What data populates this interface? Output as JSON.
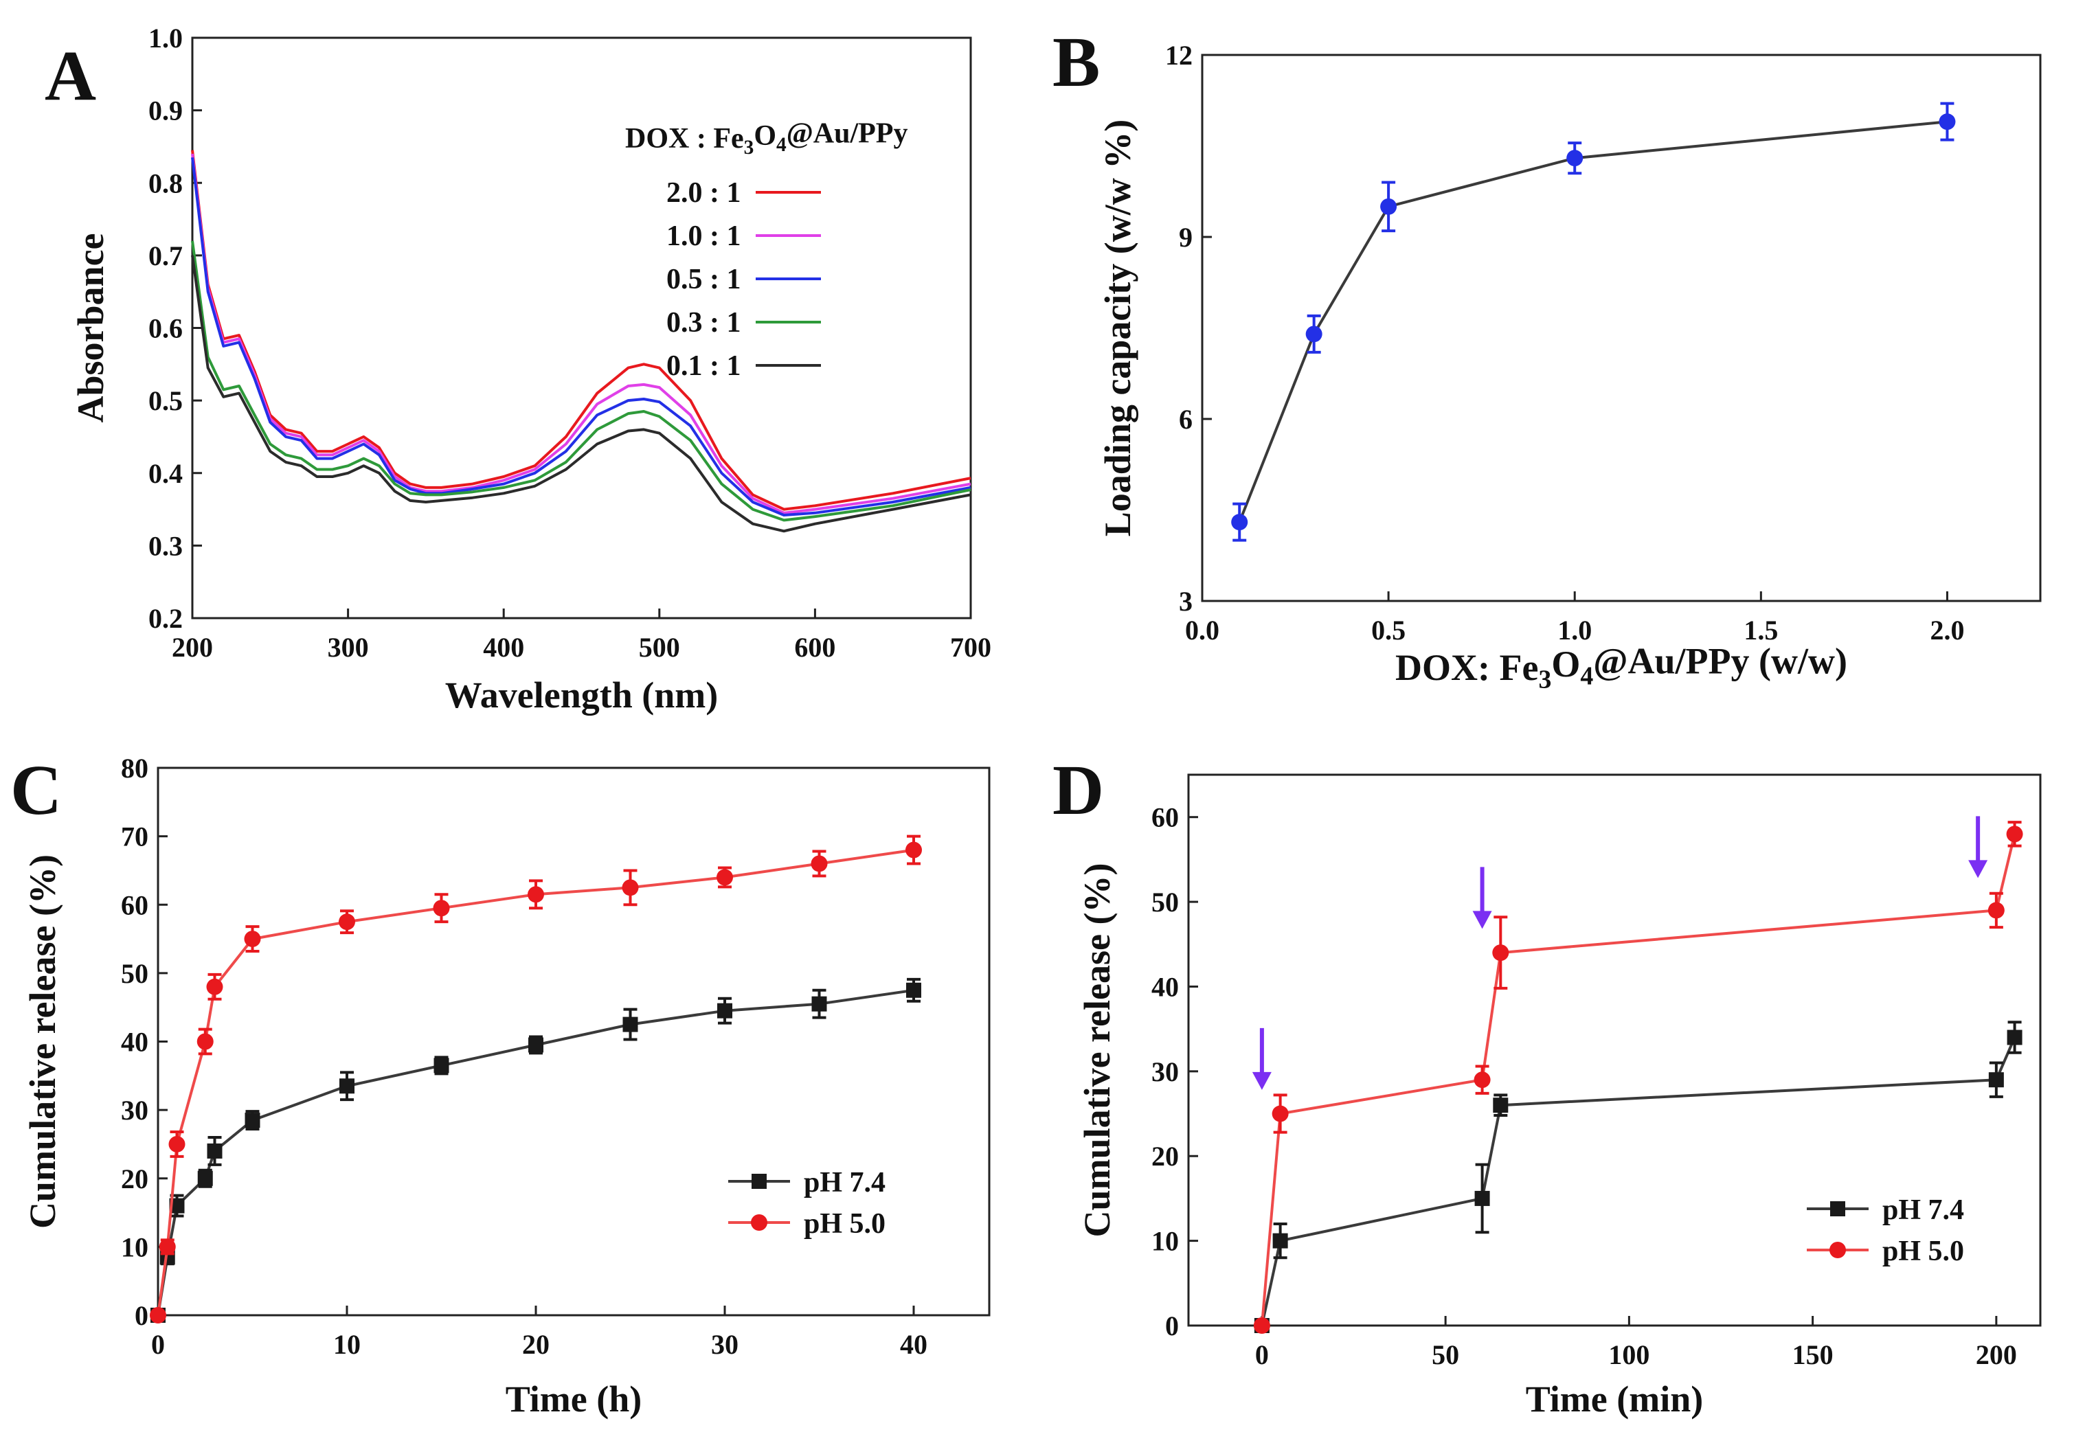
{
  "figure": {
    "panels": [
      "A",
      "B",
      "C",
      "D"
    ]
  },
  "chart_data": [
    {
      "id": "A",
      "letter": "A",
      "type": "line",
      "xlabel": "Wavelength (nm)",
      "ylabel": "Absorbance",
      "xlim": [
        200,
        700
      ],
      "ylim": [
        0.2,
        1.0
      ],
      "xticks": [
        200,
        300,
        400,
        500,
        600,
        700
      ],
      "yticks": [
        0.2,
        0.3,
        0.4,
        0.5,
        0.6,
        0.7,
        0.8,
        0.9,
        1.0
      ],
      "legend_title": "DOX : Fe3O4@Au/PPy",
      "series": [
        {
          "name": "2.0 : 1",
          "color": "#e8191e",
          "x": [
            200,
            210,
            220,
            230,
            240,
            250,
            260,
            270,
            280,
            290,
            300,
            310,
            320,
            330,
            340,
            350,
            360,
            380,
            400,
            420,
            440,
            460,
            480,
            490,
            500,
            520,
            540,
            560,
            580,
            600,
            650,
            700
          ],
          "y": [
            0.845,
            0.66,
            0.585,
            0.59,
            0.54,
            0.48,
            0.46,
            0.455,
            0.43,
            0.43,
            0.44,
            0.45,
            0.435,
            0.4,
            0.385,
            0.38,
            0.38,
            0.385,
            0.395,
            0.41,
            0.45,
            0.51,
            0.545,
            0.55,
            0.545,
            0.5,
            0.42,
            0.37,
            0.35,
            0.355,
            0.372,
            0.393
          ]
        },
        {
          "name": "1.0 : 1",
          "color": "#e040e8",
          "x": [
            200,
            210,
            220,
            230,
            240,
            250,
            260,
            270,
            280,
            290,
            300,
            310,
            320,
            330,
            340,
            350,
            360,
            380,
            400,
            420,
            440,
            460,
            480,
            490,
            500,
            520,
            540,
            560,
            580,
            600,
            650,
            700
          ],
          "y": [
            0.84,
            0.655,
            0.58,
            0.585,
            0.535,
            0.475,
            0.455,
            0.45,
            0.425,
            0.425,
            0.435,
            0.445,
            0.43,
            0.395,
            0.38,
            0.375,
            0.375,
            0.38,
            0.39,
            0.405,
            0.44,
            0.495,
            0.52,
            0.522,
            0.518,
            0.48,
            0.41,
            0.365,
            0.345,
            0.35,
            0.365,
            0.385
          ]
        },
        {
          "name": "0.5 : 1",
          "color": "#2330e6",
          "x": [
            200,
            210,
            220,
            230,
            240,
            250,
            260,
            270,
            280,
            290,
            300,
            310,
            320,
            330,
            340,
            350,
            360,
            380,
            400,
            420,
            440,
            460,
            480,
            490,
            500,
            520,
            540,
            560,
            580,
            600,
            650,
            700
          ],
          "y": [
            0.835,
            0.65,
            0.575,
            0.58,
            0.53,
            0.47,
            0.45,
            0.445,
            0.42,
            0.42,
            0.43,
            0.44,
            0.425,
            0.39,
            0.378,
            0.372,
            0.372,
            0.378,
            0.385,
            0.4,
            0.43,
            0.48,
            0.5,
            0.502,
            0.498,
            0.465,
            0.4,
            0.36,
            0.342,
            0.345,
            0.36,
            0.38
          ]
        },
        {
          "name": "0.3 : 1",
          "color": "#2e9a3a",
          "x": [
            200,
            210,
            220,
            230,
            240,
            250,
            260,
            270,
            280,
            290,
            300,
            310,
            320,
            330,
            340,
            350,
            360,
            380,
            400,
            420,
            440,
            460,
            480,
            490,
            500,
            520,
            540,
            560,
            580,
            600,
            650,
            700
          ],
          "y": [
            0.72,
            0.56,
            0.515,
            0.52,
            0.48,
            0.44,
            0.425,
            0.42,
            0.405,
            0.405,
            0.41,
            0.42,
            0.41,
            0.385,
            0.372,
            0.37,
            0.37,
            0.374,
            0.38,
            0.39,
            0.415,
            0.46,
            0.482,
            0.485,
            0.478,
            0.445,
            0.385,
            0.35,
            0.335,
            0.34,
            0.355,
            0.377
          ]
        },
        {
          "name": "0.1 : 1",
          "color": "#2b2b2b",
          "x": [
            200,
            210,
            220,
            230,
            240,
            250,
            260,
            270,
            280,
            290,
            300,
            310,
            320,
            330,
            340,
            350,
            360,
            380,
            400,
            420,
            440,
            460,
            480,
            490,
            500,
            520,
            540,
            560,
            580,
            600,
            650,
            700
          ],
          "y": [
            0.7,
            0.545,
            0.505,
            0.51,
            0.47,
            0.43,
            0.415,
            0.41,
            0.395,
            0.395,
            0.4,
            0.41,
            0.4,
            0.375,
            0.362,
            0.36,
            0.362,
            0.366,
            0.372,
            0.382,
            0.405,
            0.44,
            0.458,
            0.46,
            0.455,
            0.42,
            0.36,
            0.33,
            0.32,
            0.33,
            0.35,
            0.37
          ]
        }
      ]
    },
    {
      "id": "B",
      "letter": "B",
      "type": "line",
      "xlabel": "DOX: Fe3O4@Au/PPy (w/w)",
      "ylabel": "Loading capacity (w/w %)",
      "xlim": [
        0.0,
        2.25
      ],
      "ylim": [
        3,
        12
      ],
      "xticks": [
        0.0,
        0.5,
        1.0,
        1.5,
        2.0
      ],
      "yticks": [
        3,
        6,
        9,
        12
      ],
      "series": [
        {
          "name": "Loading capacity",
          "color": "#2330e6",
          "line_color": "#3a3a3a",
          "x": [
            0.1,
            0.3,
            0.5,
            1.0,
            2.0
          ],
          "y": [
            4.3,
            7.4,
            9.5,
            10.3,
            10.9
          ],
          "err": [
            0.3,
            0.3,
            0.4,
            0.25,
            0.3
          ]
        }
      ]
    },
    {
      "id": "C",
      "letter": "C",
      "type": "line",
      "xlabel": "Time (h)",
      "ylabel": "Cumulative release (%)",
      "xlim": [
        0,
        44
      ],
      "ylim": [
        0,
        80
      ],
      "xticks": [
        0,
        10,
        20,
        30,
        40
      ],
      "yticks": [
        0,
        10,
        20,
        30,
        40,
        50,
        60,
        70,
        80
      ],
      "series": [
        {
          "name": "pH 7.4",
          "color": "#1a1a1a",
          "line_color": "#3a3a3a",
          "x": [
            0,
            0.5,
            1,
            2.5,
            3,
            5,
            10,
            15,
            20,
            25,
            30,
            35,
            40
          ],
          "y": [
            0,
            8.5,
            16,
            20,
            24,
            28.5,
            33.5,
            36.5,
            39.5,
            42.5,
            44.5,
            45.5,
            47.5
          ],
          "err": [
            0,
            1.0,
            1.5,
            1.2,
            2.0,
            1.3,
            2.0,
            1.2,
            1.2,
            2.2,
            1.8,
            2.0,
            1.6
          ]
        },
        {
          "name": "pH 5.0",
          "color": "#e8191e",
          "line_color": "#ef4a4a",
          "x": [
            0,
            0.5,
            1,
            2.5,
            3,
            5,
            10,
            15,
            20,
            25,
            30,
            35,
            40
          ],
          "y": [
            0,
            10,
            25,
            40,
            48,
            55,
            57.5,
            59.5,
            61.5,
            62.5,
            64,
            66,
            68
          ],
          "err": [
            0,
            1.0,
            1.8,
            1.8,
            1.8,
            1.8,
            1.6,
            2.0,
            2.0,
            2.5,
            1.4,
            1.8,
            2.0
          ]
        }
      ]
    },
    {
      "id": "D",
      "letter": "D",
      "type": "line",
      "xlabel": "Time (min)",
      "ylabel": "Cumulative release (%)",
      "xlim": [
        -20,
        212
      ],
      "ylim": [
        0,
        65
      ],
      "xticks": [
        0,
        50,
        100,
        150,
        200
      ],
      "yticks": [
        0,
        10,
        20,
        30,
        40,
        50,
        60
      ],
      "arrows_at": [
        {
          "x": 0,
          "y": 27
        },
        {
          "x": 60,
          "y": 46
        },
        {
          "x": 195,
          "y": 52
        }
      ],
      "arrow_color": "#7b2ff2",
      "series": [
        {
          "name": "pH 7.4",
          "color": "#1a1a1a",
          "line_color": "#3a3a3a",
          "x": [
            0,
            5,
            60,
            65,
            200,
            205
          ],
          "y": [
            0,
            10,
            15,
            26,
            29,
            34
          ],
          "err": [
            0,
            2.0,
            4.0,
            1.2,
            2.0,
            1.8
          ]
        },
        {
          "name": "pH 5.0",
          "color": "#e8191e",
          "line_color": "#ef4a4a",
          "x": [
            0,
            5,
            60,
            65,
            200,
            205
          ],
          "y": [
            0,
            25,
            29,
            44,
            49,
            58
          ],
          "err": [
            0,
            2.2,
            1.6,
            4.2,
            2.0,
            1.4
          ]
        }
      ]
    }
  ]
}
